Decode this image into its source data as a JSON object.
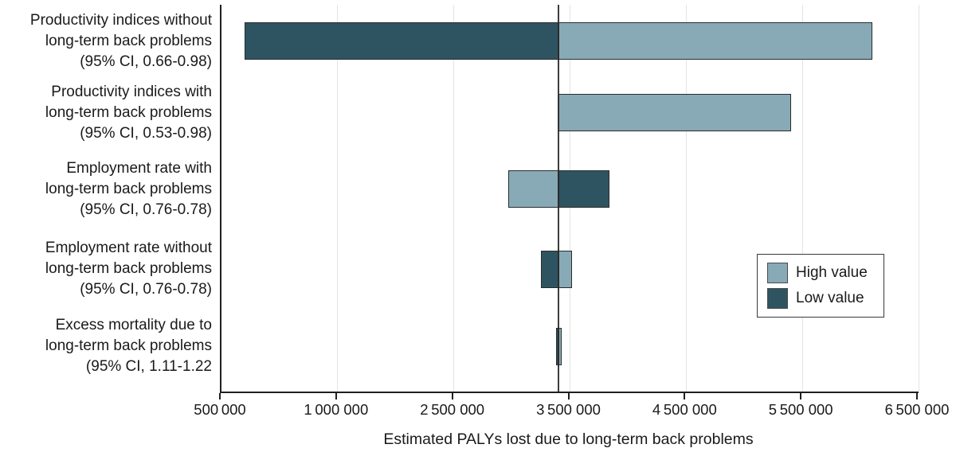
{
  "chart_data": {
    "type": "bar",
    "subtype": "tornado-horizontal",
    "title": "",
    "xlabel": "Estimated PALYs lost due to long-term back problems",
    "baseline_value": 3400000,
    "x_ticks": [
      {
        "value": 500000,
        "label": "500 000"
      },
      {
        "value": 1000000,
        "label": "1 000 000"
      },
      {
        "value": 2500000,
        "label": "2 500 000"
      },
      {
        "value": 3500000,
        "label": "3 500 000"
      },
      {
        "value": 4500000,
        "label": "4 500 000"
      },
      {
        "value": 5500000,
        "label": "5 500 000"
      },
      {
        "value": 6500000,
        "label": "6 500 000"
      }
    ],
    "legend": {
      "high": "High value",
      "low": "Low value"
    },
    "colors": {
      "high": "#87aab6",
      "low": "#2f5461",
      "bar_border": "#2b2b2b",
      "grid": "#e4e4e4",
      "axis": "#1f1f1f",
      "baseline": "#3c3c3c"
    },
    "bars": [
      {
        "label_lines": [
          "Productivity indices without",
          "long-term back problems",
          "(95% CI, 0.66-0.98)"
        ],
        "low_value": 600000,
        "high_value": 6100000
      },
      {
        "label_lines": [
          "Productivity indices with",
          "long-term back problems",
          "(95% CI, 0.53-0.98)"
        ],
        "low_value": 3400000,
        "high_value": 5400000
      },
      {
        "label_lines": [
          "Employment rate with",
          "long-term back problems",
          "(95% CI, 0.76-0.78)"
        ],
        "low_value": 3840000,
        "high_value": 2970000
      },
      {
        "label_lines": [
          "Employment rate without",
          "long-term back problems",
          "(95% CI, 0.76-0.78)"
        ],
        "low_value": 3250000,
        "high_value": 3520000
      },
      {
        "label_lines": [
          "Excess mortality due to",
          "long-term back problems",
          "(95% CI, 1.11-1.22"
        ],
        "low_value": 3380000,
        "high_value": 3430000
      }
    ]
  }
}
